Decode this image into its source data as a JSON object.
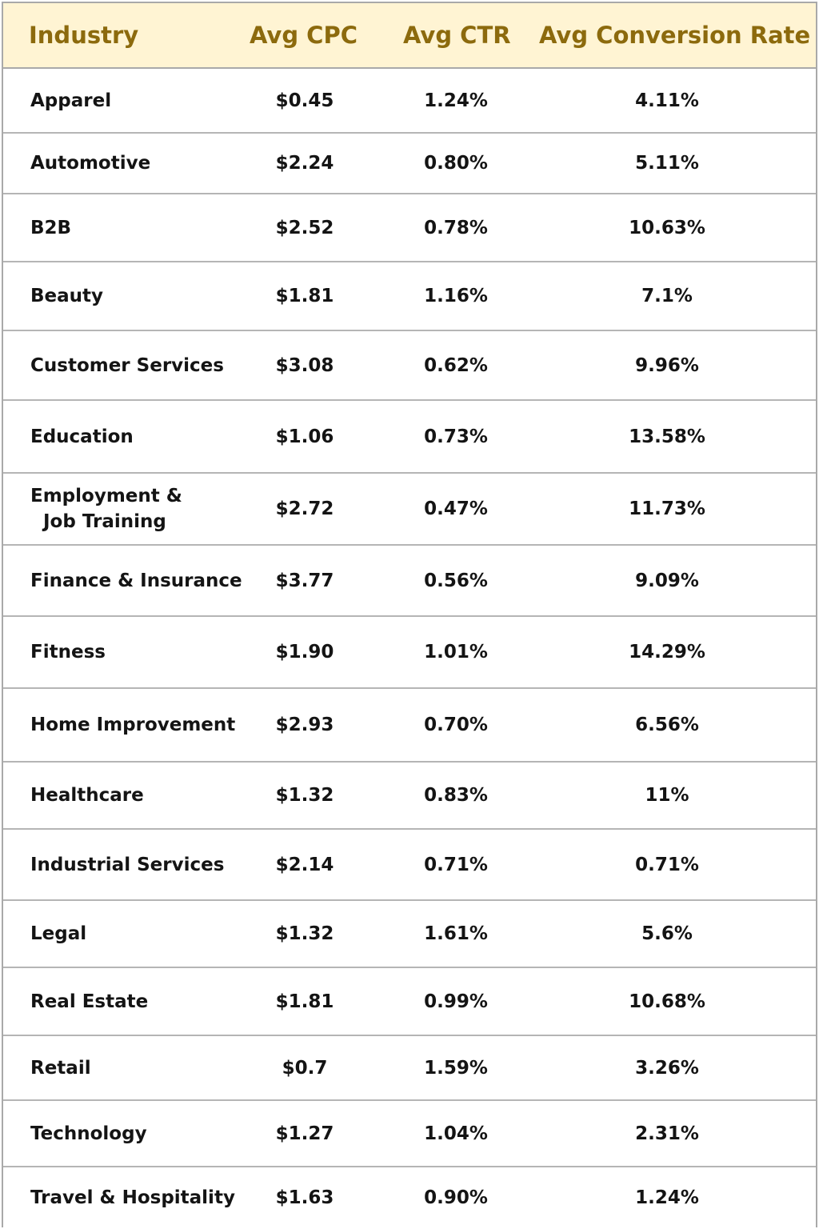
{
  "chart_data": {
    "type": "table",
    "columns": [
      "Industry",
      "Avg CPC",
      "Avg CTR",
      "Avg Conversion Rate"
    ],
    "rows": [
      {
        "industry": "Apparel",
        "cpc": "$0.45",
        "ctr": "1.24%",
        "conversion": "4.11%"
      },
      {
        "industry": "Automotive",
        "cpc": "$2.24",
        "ctr": "0.80%",
        "conversion": "5.11%"
      },
      {
        "industry": "B2B",
        "cpc": "$2.52",
        "ctr": "0.78%",
        "conversion": "10.63%"
      },
      {
        "industry": "Beauty",
        "cpc": "$1.81",
        "ctr": "1.16%",
        "conversion": "7.1%"
      },
      {
        "industry": "Customer Services",
        "cpc": "$3.08",
        "ctr": "0.62%",
        "conversion": "9.96%"
      },
      {
        "industry": "Education",
        "cpc": "$1.06",
        "ctr": "0.73%",
        "conversion": "13.58%"
      },
      {
        "industry": "Employment & Job Training",
        "industry_lines": [
          "Employment &",
          "Job Training"
        ],
        "cpc": "$2.72",
        "ctr": "0.47%",
        "conversion": "11.73%"
      },
      {
        "industry": "Finance & Insurance",
        "cpc": "$3.77",
        "ctr": "0.56%",
        "conversion": "9.09%"
      },
      {
        "industry": "Fitness",
        "cpc": "$1.90",
        "ctr": "1.01%",
        "conversion": "14.29%"
      },
      {
        "industry": "Home Improvement",
        "cpc": "$2.93",
        "ctr": "0.70%",
        "conversion": "6.56%"
      },
      {
        "industry": "Healthcare",
        "cpc": "$1.32",
        "ctr": "0.83%",
        "conversion": "11%"
      },
      {
        "industry": "Industrial Services",
        "cpc": "$2.14",
        "ctr": "0.71%",
        "conversion": "0.71%"
      },
      {
        "industry": "Legal",
        "cpc": "$1.32",
        "ctr": "1.61%",
        "conversion": "5.6%"
      },
      {
        "industry": "Real Estate",
        "cpc": "$1.81",
        "ctr": "0.99%",
        "conversion": "10.68%"
      },
      {
        "industry": "Retail",
        "cpc": "$0.7",
        "ctr": "1.59%",
        "conversion": "3.26%"
      },
      {
        "industry": "Technology",
        "cpc": "$1.27",
        "ctr": "1.04%",
        "conversion": "2.31%"
      },
      {
        "industry": "Travel & Hospitality",
        "cpc": "$1.63",
        "ctr": "0.90%",
        "conversion": "1.24%"
      }
    ]
  },
  "colors": {
    "header_background": "#fff4d3",
    "header_text": "#8c6a0d",
    "body_text": "#141414",
    "grid_lines": "#a9a9a9"
  }
}
